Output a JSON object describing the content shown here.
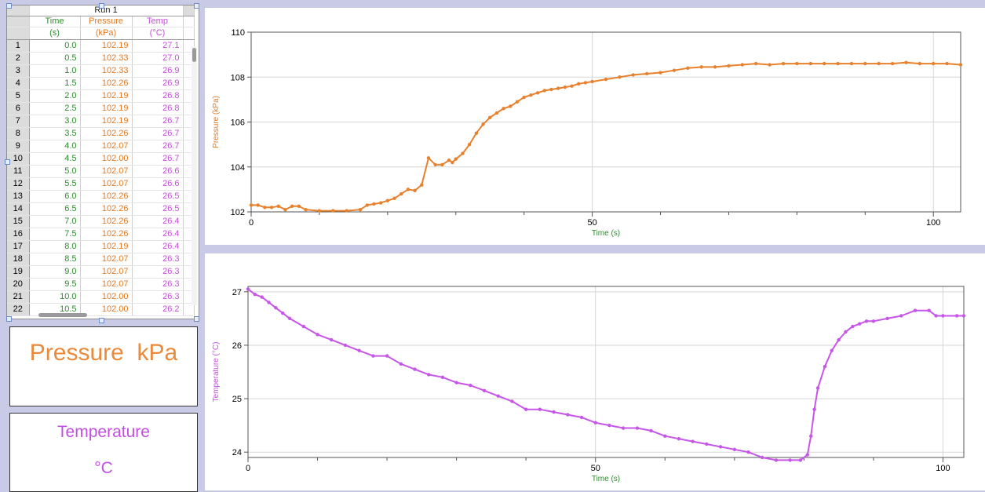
{
  "table": {
    "run_title": "Run 1",
    "columns": [
      {
        "name": "Time",
        "unit": "(s)",
        "color": "#2e8b2e"
      },
      {
        "name": "Pressure",
        "unit": "(kPa)",
        "color": "#e07a26"
      },
      {
        "name": "Temp",
        "unit": "(°C)",
        "color": "#c84ce0"
      }
    ],
    "rows": [
      [
        "1",
        "0.0",
        "102.19",
        "27.1"
      ],
      [
        "2",
        "0.5",
        "102.33",
        "27.0"
      ],
      [
        "3",
        "1.0",
        "102.33",
        "26.9"
      ],
      [
        "4",
        "1.5",
        "102.26",
        "26.9"
      ],
      [
        "5",
        "2.0",
        "102.19",
        "26.8"
      ],
      [
        "6",
        "2.5",
        "102.19",
        "26.8"
      ],
      [
        "7",
        "3.0",
        "102.19",
        "26.7"
      ],
      [
        "8",
        "3.5",
        "102.26",
        "26.7"
      ],
      [
        "9",
        "4.0",
        "102.07",
        "26.7"
      ],
      [
        "10",
        "4.5",
        "102.00",
        "26.7"
      ],
      [
        "11",
        "5.0",
        "102.07",
        "26.6"
      ],
      [
        "12",
        "5.5",
        "102.07",
        "26.6"
      ],
      [
        "13",
        "6.0",
        "102.26",
        "26.5"
      ],
      [
        "14",
        "6.5",
        "102.26",
        "26.5"
      ],
      [
        "15",
        "7.0",
        "102.26",
        "26.4"
      ],
      [
        "16",
        "7.5",
        "102.26",
        "26.4"
      ],
      [
        "17",
        "8.0",
        "102.19",
        "26.4"
      ],
      [
        "18",
        "8.5",
        "102.07",
        "26.3"
      ],
      [
        "19",
        "9.0",
        "102.07",
        "26.3"
      ],
      [
        "20",
        "9.5",
        "102.07",
        "26.3"
      ],
      [
        "21",
        "10.0",
        "102.00",
        "26.3"
      ],
      [
        "22",
        "10.5",
        "102.00",
        "26.2"
      ]
    ]
  },
  "meters": {
    "pressure": {
      "label": "Pressure  kPa",
      "color": "#e98a3c"
    },
    "temperature": {
      "label": "Temperature",
      "unit": "°C",
      "color": "#c14fe0"
    }
  },
  "chart_data": [
    {
      "type": "line",
      "id": "pressure",
      "xlabel": "Time (s)",
      "ylabel": "Pressure (kPa)",
      "xlim": [
        0,
        104
      ],
      "ylim": [
        102,
        110
      ],
      "xticks": [
        0,
        50,
        100
      ],
      "yticks": [
        102,
        104,
        106,
        108,
        110
      ],
      "grid": true,
      "color": "#e8812d",
      "axis_label_colors": {
        "x": "#2e8b2e",
        "y": "#e07a26"
      },
      "x": [
        0,
        1,
        2,
        3,
        4,
        5,
        6,
        7,
        8,
        10,
        12,
        14,
        16,
        17,
        18,
        19,
        20,
        21,
        22,
        23,
        24,
        25,
        26,
        27,
        28,
        29,
        29.5,
        30,
        31,
        32,
        33,
        34,
        35,
        36,
        37,
        38,
        39,
        40,
        41,
        42,
        43,
        44,
        45,
        46,
        47,
        48,
        49,
        50,
        52,
        54,
        56,
        58,
        60,
        62,
        64,
        66,
        68,
        70,
        72,
        74,
        76,
        78,
        80,
        82,
        84,
        86,
        88,
        90,
        92,
        94,
        96,
        98,
        100,
        102,
        104
      ],
      "y": [
        102.3,
        102.3,
        102.2,
        102.2,
        102.25,
        102.1,
        102.25,
        102.25,
        102.1,
        102.05,
        102.05,
        102.05,
        102.1,
        102.3,
        102.35,
        102.4,
        102.5,
        102.6,
        102.8,
        103.0,
        102.95,
        103.2,
        104.4,
        104.1,
        104.1,
        104.3,
        104.2,
        104.35,
        104.6,
        105.0,
        105.5,
        105.9,
        106.2,
        106.4,
        106.6,
        106.7,
        106.9,
        107.1,
        107.2,
        107.3,
        107.4,
        107.45,
        107.5,
        107.55,
        107.6,
        107.7,
        107.75,
        107.8,
        107.9,
        108.0,
        108.1,
        108.15,
        108.2,
        108.3,
        108.4,
        108.45,
        108.45,
        108.5,
        108.55,
        108.6,
        108.55,
        108.6,
        108.6,
        108.6,
        108.6,
        108.6,
        108.6,
        108.6,
        108.6,
        108.6,
        108.65,
        108.6,
        108.6,
        108.6,
        108.55
      ]
    },
    {
      "type": "line",
      "id": "temperature",
      "xlabel": "Time (s)",
      "ylabel": "Temperature (°C)",
      "xlim": [
        0,
        103
      ],
      "ylim": [
        23.9,
        27.1
      ],
      "xticks": [
        0,
        50,
        100
      ],
      "yticks": [
        24,
        25,
        26,
        27
      ],
      "grid": true,
      "color": "#c655e8",
      "axis_label_colors": {
        "x": "#2e8b2e",
        "y": "#c84ce0"
      },
      "x": [
        0,
        1,
        2,
        3,
        4,
        5,
        6,
        8,
        10,
        12,
        14,
        16,
        18,
        20,
        22,
        24,
        26,
        28,
        30,
        32,
        34,
        36,
        38,
        40,
        42,
        44,
        46,
        48,
        50,
        52,
        54,
        56,
        58,
        60,
        62,
        64,
        66,
        68,
        70,
        72,
        74,
        76,
        78,
        79.5,
        80.5,
        81,
        81.5,
        82,
        83,
        84,
        85,
        86,
        87,
        88,
        89,
        90,
        92,
        94,
        96,
        98,
        99,
        100,
        102,
        103
      ],
      "y": [
        27.05,
        26.95,
        26.9,
        26.8,
        26.7,
        26.6,
        26.5,
        26.35,
        26.2,
        26.1,
        26.0,
        25.9,
        25.8,
        25.8,
        25.65,
        25.55,
        25.45,
        25.4,
        25.3,
        25.25,
        25.15,
        25.05,
        24.95,
        24.8,
        24.8,
        24.75,
        24.7,
        24.65,
        24.55,
        24.5,
        24.45,
        24.45,
        24.4,
        24.3,
        24.25,
        24.2,
        24.15,
        24.1,
        24.05,
        24.0,
        23.9,
        23.85,
        23.85,
        23.85,
        23.95,
        24.3,
        24.8,
        25.2,
        25.6,
        25.9,
        26.1,
        26.25,
        26.35,
        26.4,
        26.45,
        26.45,
        26.5,
        26.55,
        26.65,
        26.65,
        26.55,
        26.55,
        26.55,
        26.55
      ]
    }
  ]
}
